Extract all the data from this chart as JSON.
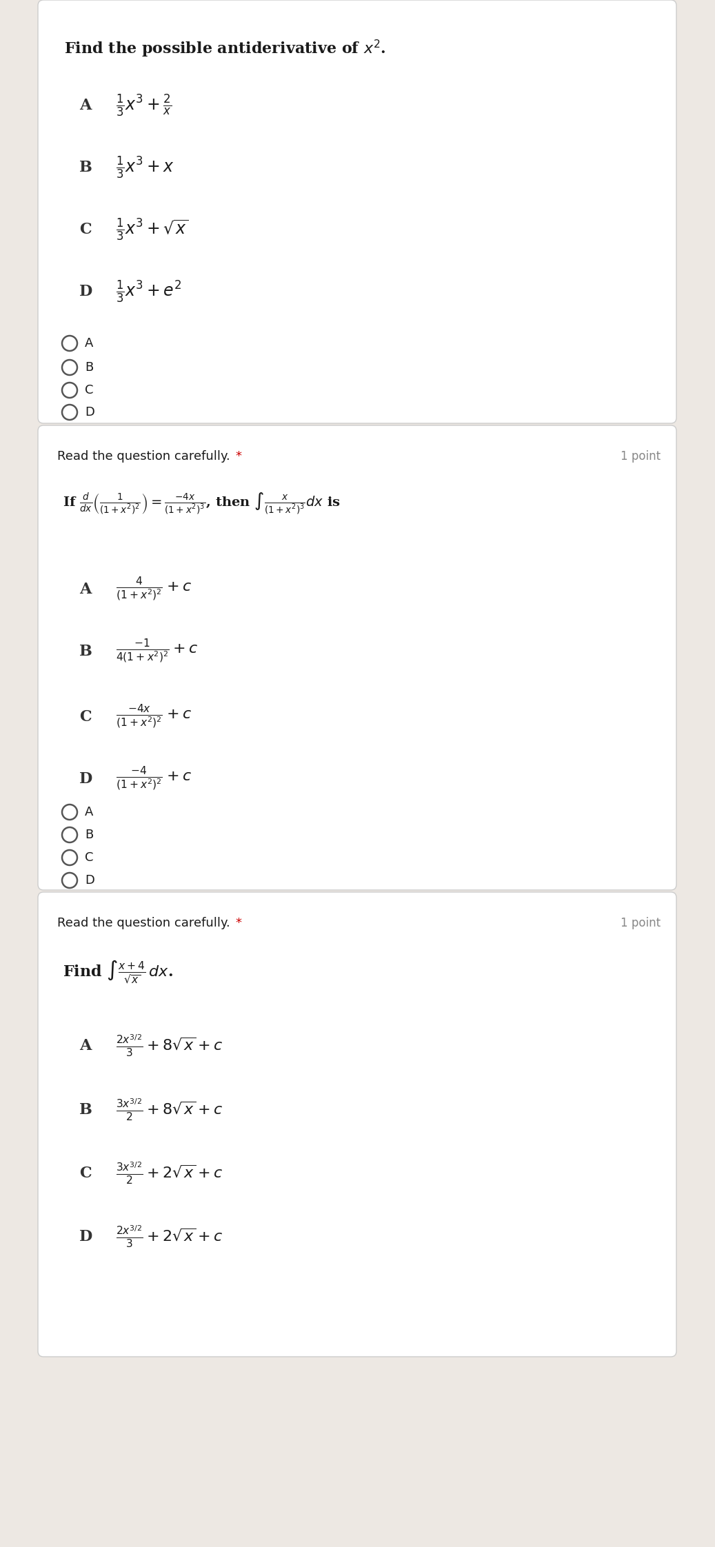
{
  "bg_outer": "#ede8e3",
  "bg_card": "#ffffff",
  "text_color": "#1a1a1a",
  "radio_color": "#555555",
  "star_color": "#cc0000",
  "point_color": "#888888",
  "label_color": "#333333",
  "q1": {
    "title": "Find the possible antiderivative of $x^2$.",
    "options": [
      [
        "A",
        "$\\frac{1}{3}x^3+\\frac{2}{x}$"
      ],
      [
        "B",
        "$\\frac{1}{3}x^3+x$"
      ],
      [
        "C",
        "$\\frac{1}{3}x^3+\\sqrt{x}$"
      ],
      [
        "D",
        "$\\frac{1}{3}x^3+e^2$"
      ]
    ],
    "radios": [
      "A",
      "B",
      "C",
      "D"
    ]
  },
  "q2": {
    "header": "Read the question carefully.",
    "star": "*",
    "point_label": "1 point",
    "title_parts": [
      "If $\\frac{d}{dx}\\left(\\frac{1}{(1+x^2)^2}\\right)=\\frac{-4x}{(1+x^2)^3}$, then $\\int\\frac{x}{(1+x^2)^3}dx$ is"
    ],
    "options": [
      [
        "A",
        "$\\frac{4}{(1+x^2)^2}+c$"
      ],
      [
        "B",
        "$\\frac{-1}{4(1+x^2)^2}+c$"
      ],
      [
        "C",
        "$\\frac{-4x}{(1+x^2)^2}+c$"
      ],
      [
        "D",
        "$\\frac{-4}{(1+x^2)^2}+c$"
      ]
    ],
    "radios": [
      "A",
      "B",
      "C",
      "D"
    ]
  },
  "q3": {
    "header": "Read the question carefully.",
    "star": "*",
    "point_label": "1 point",
    "title": "Find $\\int\\frac{x+4}{\\sqrt{x}}\\,dx$.",
    "options": [
      [
        "A",
        "$\\frac{2x^{3/2}}{3}+8\\sqrt{x}+c$"
      ],
      [
        "B",
        "$\\frac{3x^{3/2}}{2}+8\\sqrt{x}+c$"
      ],
      [
        "C",
        "$\\frac{3x^{3/2}}{2}+2\\sqrt{x}+c$"
      ],
      [
        "D",
        "$\\frac{2x^{3/2}}{3}+2\\sqrt{x}+c$"
      ]
    ],
    "radios": []
  }
}
